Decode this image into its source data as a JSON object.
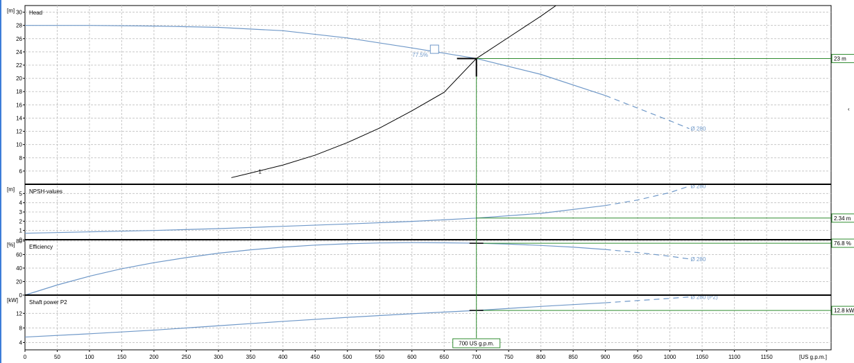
{
  "chart_data": {
    "type": "line",
    "x_axis": {
      "unit": "[US g.p.m.]",
      "range": [
        0,
        1250
      ],
      "ticks": [
        0,
        50,
        100,
        150,
        200,
        250,
        300,
        350,
        400,
        450,
        500,
        550,
        600,
        650,
        700,
        750,
        800,
        850,
        900,
        950,
        1000,
        1050,
        1100,
        1150
      ]
    },
    "operating_point": {
      "flow": 700,
      "label": "700 US g.p.m."
    },
    "panels": [
      {
        "id": "head",
        "title": "Head",
        "unit": "[m]",
        "ylim": [
          4,
          31
        ],
        "ticks": [
          6,
          8,
          10,
          12,
          14,
          16,
          18,
          20,
          22,
          24,
          26,
          28,
          30
        ],
        "series_label": "Ø 280",
        "curve": {
          "x": [
            0,
            100,
            200,
            300,
            400,
            500,
            600,
            650,
            700,
            800,
            900
          ],
          "y": [
            28,
            28,
            27.9,
            27.7,
            27.2,
            26.1,
            24.6,
            23.8,
            23,
            20.6,
            17.4
          ]
        },
        "dashed": {
          "x": [
            900,
            950,
            1000,
            1030
          ],
          "y": [
            17.4,
            15.5,
            13.6,
            12.4
          ]
        },
        "system_curve": {
          "label": "1",
          "x": [
            320,
            350,
            400,
            450,
            500,
            550,
            600,
            650,
            700,
            750,
            800,
            838
          ],
          "y": [
            5,
            5.7,
            6.9,
            8.4,
            10.3,
            12.5,
            15.1,
            17.9,
            23,
            26.2,
            29.4,
            32
          ]
        },
        "efficiency_marker": {
          "x": 635,
          "y": 24.4,
          "label": "77.5%"
        },
        "duty_label": "23 m",
        "duty_value": 23
      },
      {
        "id": "npsh",
        "title": "NPSH-values",
        "unit": "[m]",
        "ylim": [
          0,
          6
        ],
        "ticks": [
          0,
          1,
          2,
          3,
          4,
          5
        ],
        "series_label": "Ø 280",
        "curve": {
          "x": [
            0,
            100,
            200,
            300,
            400,
            500,
            600,
            700,
            800,
            900
          ],
          "y": [
            0.7,
            0.85,
            1.0,
            1.2,
            1.45,
            1.7,
            1.98,
            2.34,
            2.85,
            3.7
          ]
        },
        "dashed": {
          "x": [
            900,
            950,
            1000,
            1030
          ],
          "y": [
            3.7,
            4.3,
            5.1,
            5.8
          ]
        },
        "duty_label": "2.34 m",
        "duty_value": 2.34
      },
      {
        "id": "efficiency",
        "title": "Efficiency",
        "unit": "[%]",
        "ylim": [
          0,
          82
        ],
        "ticks": [
          0,
          20,
          40,
          60,
          80
        ],
        "series_label": "Ø 280",
        "curve": {
          "x": [
            0,
            50,
            100,
            150,
            200,
            250,
            300,
            350,
            400,
            450,
            500,
            550,
            600,
            650,
            700,
            750,
            800,
            850,
            900
          ],
          "y": [
            0,
            15,
            28,
            39,
            48,
            55.5,
            62,
            67,
            71,
            74,
            76,
            77.2,
            77.6,
            77.4,
            76.8,
            75.5,
            73.5,
            71,
            67.5
          ]
        },
        "dashed": {
          "x": [
            900,
            950,
            1000,
            1030
          ],
          "y": [
            67.5,
            63,
            57.5,
            53.5
          ]
        },
        "duty_label": "76.8 %",
        "duty_value": 76.8
      },
      {
        "id": "power",
        "title": "Shaft power P2",
        "unit": "[kW]",
        "ylim": [
          2,
          17
        ],
        "ticks": [
          4,
          8,
          12
        ],
        "series_label": "Ø 280 (P2)",
        "curve": {
          "x": [
            0,
            100,
            200,
            300,
            400,
            500,
            600,
            700,
            800,
            900
          ],
          "y": [
            5.5,
            6.4,
            7.4,
            8.6,
            9.8,
            10.9,
            11.9,
            12.8,
            13.9,
            14.9
          ]
        },
        "dashed": {
          "x": [
            900,
            950,
            1000,
            1030
          ],
          "y": [
            14.9,
            15.5,
            16.1,
            16.5
          ]
        },
        "duty_label": "12.8 kW",
        "duty_value": 12.8
      }
    ]
  }
}
